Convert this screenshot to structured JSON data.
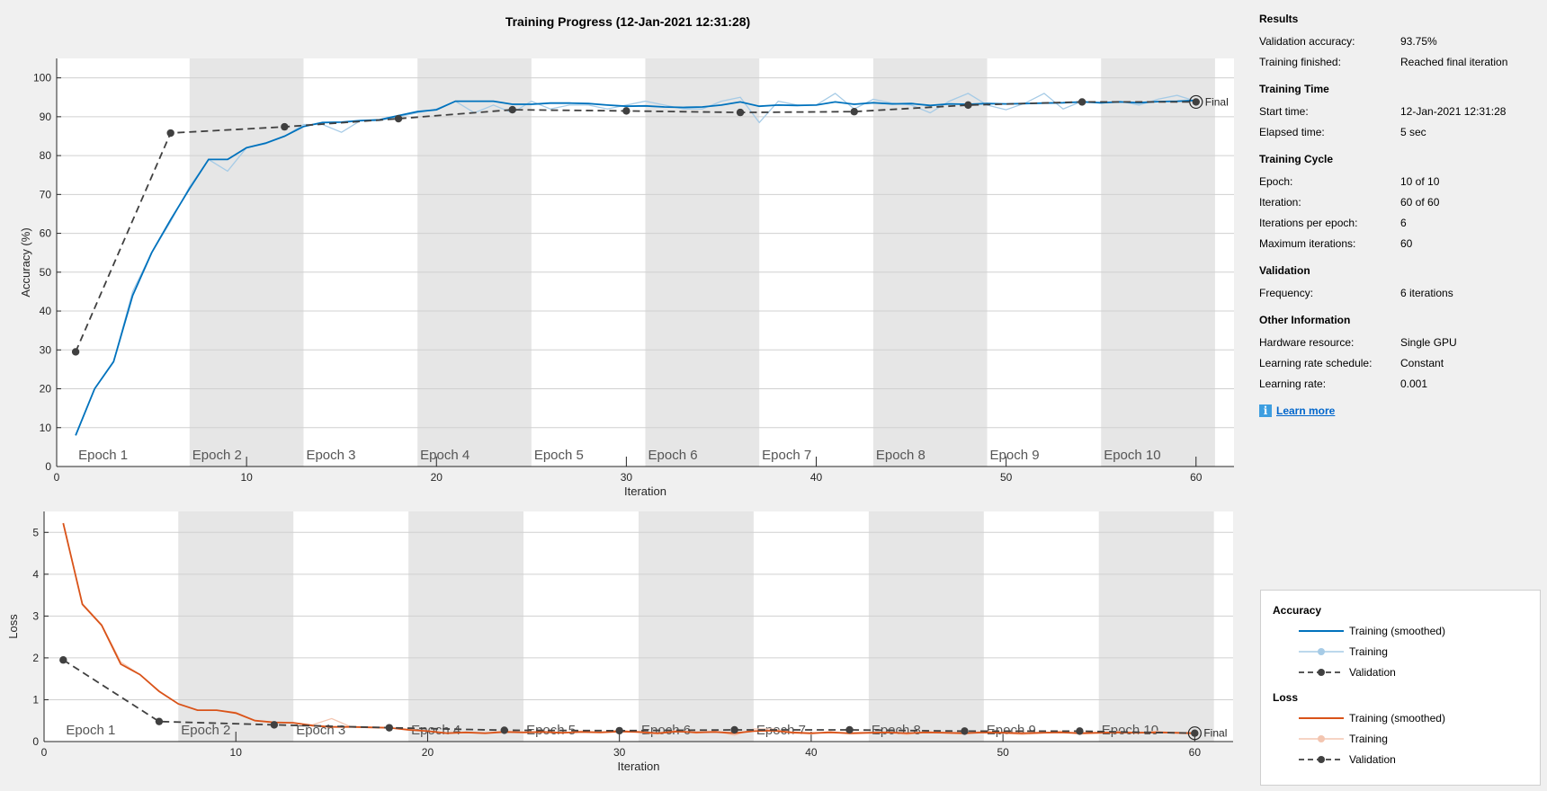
{
  "title": "Training Progress (12-Jan-2021 12:31:28)",
  "colors": {
    "accuracy": "#0072bd",
    "accuracy_raw": "#a6cbe6",
    "loss": "#d95319",
    "loss_raw": "#f3c5b0",
    "validation": "#404040",
    "shade": "#e6e6e6"
  },
  "epoch_labels": [
    "Epoch 1",
    "Epoch 2",
    "Epoch 3",
    "Epoch 4",
    "Epoch 5",
    "Epoch 6",
    "Epoch 7",
    "Epoch 8",
    "Epoch 9",
    "Epoch 10"
  ],
  "final_label": "Final",
  "chart_data": [
    {
      "type": "line",
      "xlabel": "Iteration",
      "ylabel": "Accuracy (%)",
      "xlim": [
        0,
        62
      ],
      "ylim": [
        0,
        105
      ],
      "xticks": [
        0,
        10,
        20,
        30,
        40,
        50,
        60
      ],
      "yticks": [
        0,
        10,
        20,
        30,
        40,
        50,
        60,
        70,
        80,
        90,
        100
      ],
      "series": [
        {
          "name": "Training (smoothed)",
          "x": [
            1,
            2,
            3,
            4,
            5,
            6,
            7,
            8,
            9,
            10,
            11,
            12,
            13,
            14,
            15,
            16,
            17,
            18,
            19,
            20,
            21,
            22,
            23,
            24,
            25,
            26,
            27,
            28,
            29,
            30,
            31,
            32,
            33,
            34,
            35,
            36,
            37,
            38,
            39,
            40,
            41,
            42,
            43,
            44,
            45,
            46,
            47,
            48,
            49,
            50,
            51,
            52,
            53,
            54,
            55,
            56,
            57,
            58,
            59,
            60
          ],
          "y": [
            8,
            20,
            27,
            44,
            55,
            63.5,
            71.5,
            79,
            79,
            82,
            83.2,
            85,
            87.5,
            88.5,
            88.6,
            89,
            89.2,
            90.3,
            91.3,
            91.8,
            94,
            94,
            94,
            93.2,
            93.2,
            93.5,
            93.5,
            93.4,
            93,
            92.7,
            92.8,
            92.5,
            92.4,
            92.5,
            93,
            93.8,
            92.7,
            93,
            92.9,
            93,
            93.8,
            93.2,
            93.6,
            93.3,
            93.4,
            92.9,
            93.3,
            93.2,
            93.4,
            93.3,
            93.4,
            93.5,
            93.6,
            93.8,
            93.6,
            93.8,
            93.6,
            93.9,
            94,
            94.2
          ]
        },
        {
          "name": "Training",
          "x": [
            1,
            2,
            3,
            4,
            5,
            6,
            7,
            8,
            9,
            10,
            11,
            12,
            13,
            14,
            15,
            16,
            17,
            18,
            19,
            20,
            21,
            22,
            23,
            24,
            25,
            26,
            27,
            28,
            29,
            30,
            31,
            32,
            33,
            34,
            35,
            36,
            37,
            38,
            39,
            40,
            41,
            42,
            43,
            44,
            45,
            46,
            47,
            48,
            49,
            50,
            51,
            52,
            53,
            54,
            55,
            56,
            57,
            58,
            59,
            60
          ],
          "y": [
            8,
            20,
            27,
            45,
            55,
            63,
            72,
            79,
            76,
            82,
            83,
            85,
            88,
            88,
            86,
            89,
            89,
            90,
            91,
            92,
            94,
            91,
            93,
            91,
            94,
            92,
            93,
            93,
            92,
            93,
            94,
            93,
            92,
            92,
            94,
            95,
            88.5,
            94,
            93,
            93,
            96,
            92,
            94.5,
            93.5,
            93,
            91,
            94,
            96,
            93,
            91.8,
            93.5,
            96,
            92,
            94,
            93.5,
            94,
            93,
            94.5,
            95.5,
            94
          ]
        },
        {
          "name": "Validation",
          "x": [
            1,
            6,
            12,
            18,
            24,
            30,
            36,
            42,
            48,
            54,
            60
          ],
          "y": [
            29.5,
            85.8,
            87.4,
            89.5,
            91.8,
            91.5,
            91.1,
            91.3,
            93,
            93.8,
            93.8
          ]
        }
      ]
    },
    {
      "type": "line",
      "xlabel": "Iteration",
      "ylabel": "Loss",
      "xlim": [
        0,
        62
      ],
      "ylim": [
        0,
        5.5
      ],
      "xticks": [
        0,
        10,
        20,
        30,
        40,
        50,
        60
      ],
      "yticks": [
        0,
        1,
        2,
        3,
        4,
        5
      ],
      "series": [
        {
          "name": "Training (smoothed)",
          "x": [
            1,
            2,
            3,
            4,
            5,
            6,
            7,
            8,
            9,
            10,
            11,
            12,
            13,
            14,
            15,
            16,
            17,
            18,
            19,
            20,
            21,
            22,
            23,
            24,
            25,
            26,
            27,
            28,
            29,
            30,
            31,
            32,
            33,
            34,
            35,
            36,
            37,
            38,
            39,
            40,
            41,
            42,
            43,
            44,
            45,
            46,
            47,
            48,
            49,
            50,
            51,
            52,
            53,
            54,
            55,
            56,
            57,
            58,
            59,
            60
          ],
          "y": [
            5.22,
            3.28,
            2.78,
            1.85,
            1.6,
            1.2,
            0.9,
            0.75,
            0.75,
            0.68,
            0.5,
            0.46,
            0.45,
            0.38,
            0.35,
            0.35,
            0.34,
            0.33,
            0.28,
            0.25,
            0.2,
            0.22,
            0.2,
            0.23,
            0.22,
            0.23,
            0.21,
            0.23,
            0.22,
            0.24,
            0.23,
            0.2,
            0.24,
            0.22,
            0.23,
            0.2,
            0.25,
            0.26,
            0.22,
            0.2,
            0.22,
            0.2,
            0.21,
            0.22,
            0.2,
            0.22,
            0.21,
            0.2,
            0.22,
            0.21,
            0.2,
            0.21,
            0.22,
            0.2,
            0.21,
            0.22,
            0.21,
            0.22,
            0.21,
            0.2
          ]
        },
        {
          "name": "Training",
          "x": [
            1,
            2,
            3,
            4,
            5,
            6,
            7,
            8,
            9,
            10,
            11,
            12,
            13,
            14,
            15,
            16,
            17,
            18,
            19,
            20,
            21,
            22,
            23,
            24,
            25,
            26,
            27,
            28,
            29,
            30,
            31,
            32,
            33,
            34,
            35,
            36,
            37,
            38,
            39,
            40,
            41,
            42,
            43,
            44,
            45,
            46,
            47,
            48,
            49,
            50,
            51,
            52,
            53,
            54,
            55,
            56,
            57,
            58,
            59,
            60
          ],
          "y": [
            5.2,
            3.3,
            2.8,
            1.9,
            1.6,
            1.2,
            0.9,
            0.75,
            0.75,
            0.7,
            0.5,
            0.45,
            0.45,
            0.4,
            0.55,
            0.35,
            0.33,
            0.32,
            0.3,
            0.25,
            0.2,
            0.22,
            0.2,
            0.25,
            0.22,
            0.23,
            0.2,
            0.25,
            0.22,
            0.28,
            0.22,
            0.18,
            0.27,
            0.2,
            0.25,
            0.15,
            0.3,
            0.3,
            0.2,
            0.18,
            0.24,
            0.18,
            0.2,
            0.22,
            0.17,
            0.24,
            0.2,
            0.18,
            0.25,
            0.2,
            0.17,
            0.2,
            0.25,
            0.18,
            0.2,
            0.24,
            0.2,
            0.25,
            0.2,
            0.18
          ]
        },
        {
          "name": "Validation",
          "x": [
            1,
            6,
            12,
            18,
            24,
            30,
            36,
            42,
            48,
            54,
            60
          ],
          "y": [
            1.95,
            0.48,
            0.4,
            0.33,
            0.27,
            0.26,
            0.28,
            0.28,
            0.25,
            0.25,
            0.2
          ]
        }
      ]
    }
  ],
  "side": {
    "results_h": "Results",
    "val_acc_k": "Validation accuracy:",
    "val_acc_v": "93.75%",
    "finished_k": "Training finished:",
    "finished_v": "Reached final iteration",
    "time_h": "Training Time",
    "start_k": "Start time:",
    "start_v": "12-Jan-2021 12:31:28",
    "elapsed_k": "Elapsed time:",
    "elapsed_v": "5 sec",
    "cycle_h": "Training Cycle",
    "epoch_k": "Epoch:",
    "epoch_v": "10 of 10",
    "iter_k": "Iteration:",
    "iter_v": "60 of 60",
    "ipe_k": "Iterations per epoch:",
    "ipe_v": "6",
    "maxit_k": "Maximum iterations:",
    "maxit_v": "60",
    "val_h": "Validation",
    "freq_k": "Frequency:",
    "freq_v": "6 iterations",
    "other_h": "Other Information",
    "hw_k": "Hardware resource:",
    "hw_v": "Single GPU",
    "lrs_k": "Learning rate schedule:",
    "lrs_v": "Constant",
    "lr_k": "Learning rate:",
    "lr_v": "0.001",
    "learn_more": "Learn more",
    "info_glyph": "i"
  },
  "legend": {
    "acc_h": "Accuracy",
    "acc_smooth": "Training (smoothed)",
    "acc_train": "Training",
    "acc_val": "Validation",
    "loss_h": "Loss",
    "loss_smooth": "Training (smoothed)",
    "loss_train": "Training",
    "loss_val": "Validation"
  }
}
